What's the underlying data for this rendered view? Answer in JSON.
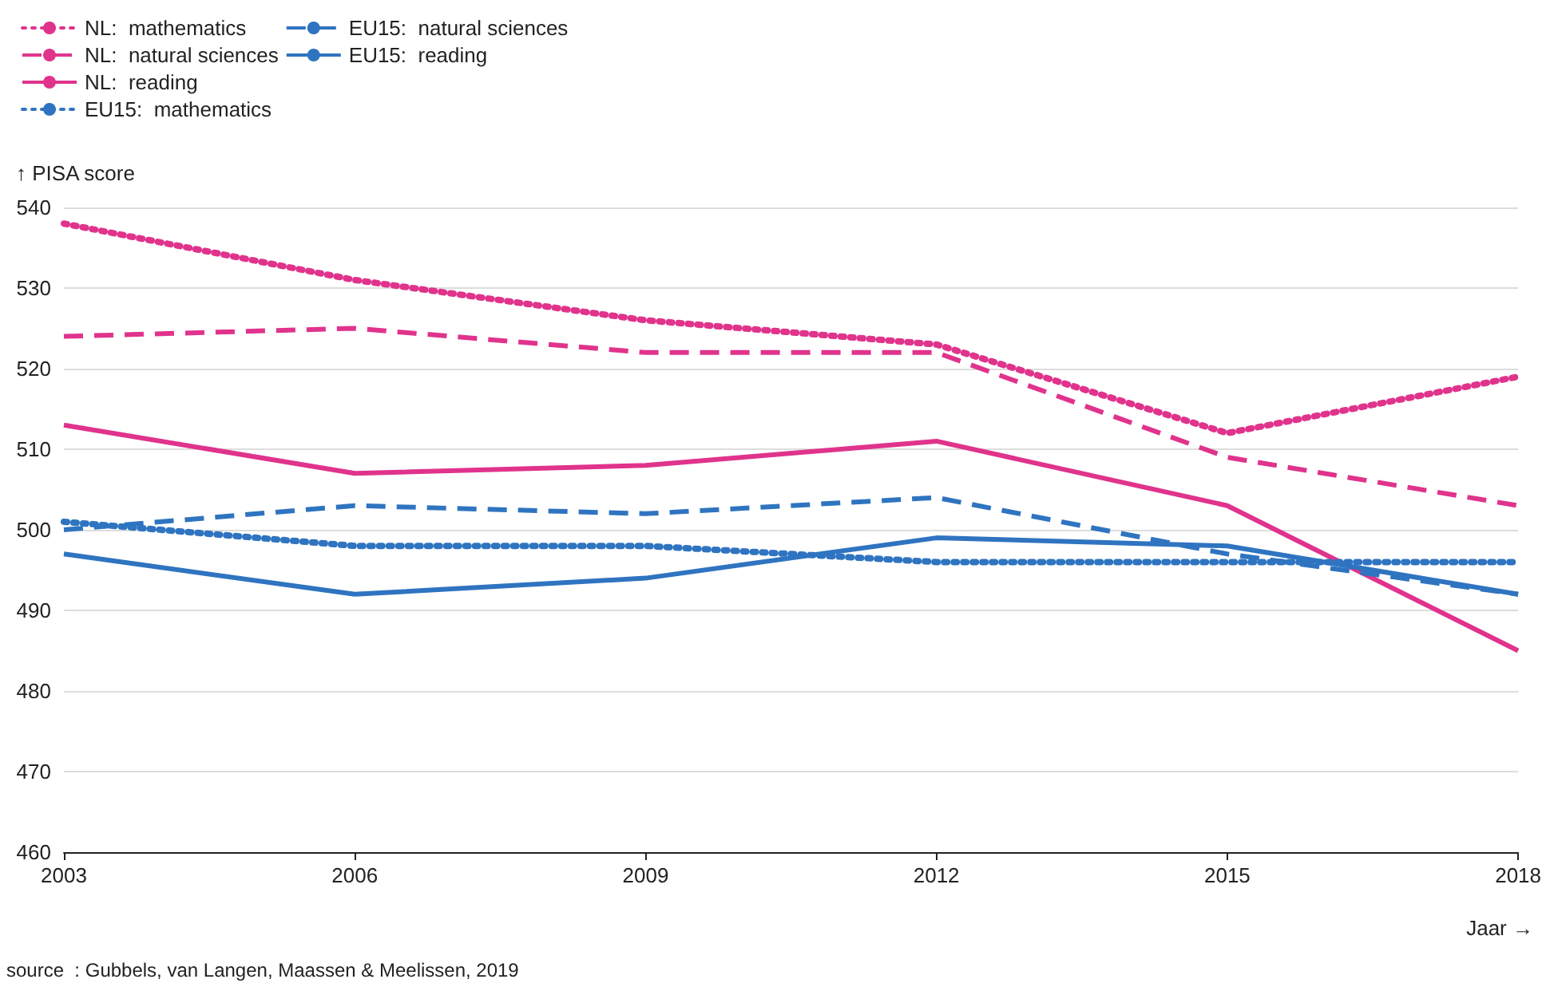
{
  "chart_data": {
    "type": "line",
    "xlabel": "Jaar →",
    "ylabel": "↑ PISA score",
    "annotations": [
      "source  : Gubbels, van Langen, Maassen & Meelissen, 2019"
    ],
    "x": [
      2003,
      2006,
      2009,
      2012,
      2015,
      2018
    ],
    "xlim": [
      2003,
      2018
    ],
    "xticks": [
      2003,
      2006,
      2009,
      2012,
      2015,
      2018
    ],
    "ylim": [
      460,
      540
    ],
    "yticks": [
      460,
      470,
      480,
      490,
      500,
      510,
      520,
      530,
      540
    ],
    "grid": "y",
    "legend": "top left",
    "marker": "none",
    "series": [
      {
        "name": "NL:  mathematics",
        "color": "#e0338c",
        "line_style": "dotted",
        "values": [
          538,
          531,
          526,
          523,
          512,
          519
        ]
      },
      {
        "name": "NL:  natural sciences",
        "color": "#e0338c",
        "line_style": "dashed",
        "values": [
          524,
          525,
          522,
          522,
          509,
          503
        ]
      },
      {
        "name": "NL:  reading",
        "color": "#e0338c",
        "line_style": "solid",
        "values": [
          513,
          507,
          508,
          511,
          503,
          485
        ]
      },
      {
        "name": "EU15:  mathematics",
        "color": "#2f74c0",
        "line_style": "dotted",
        "values": [
          501,
          498,
          498,
          496,
          496,
          496
        ]
      },
      {
        "name": "EU15:  natural sciences",
        "color": "#2f74c0",
        "line_style": "dashed",
        "values": [
          500,
          503,
          502,
          504,
          497,
          492
        ]
      },
      {
        "name": "EU15:  reading",
        "color": "#2f74c0",
        "line_style": "solid",
        "values": [
          497,
          492,
          494,
          499,
          498,
          492
        ]
      }
    ]
  }
}
